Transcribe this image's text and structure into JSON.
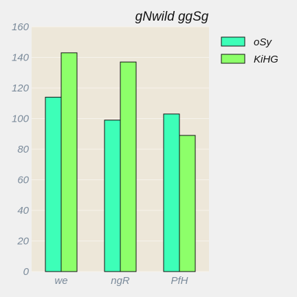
{
  "chart_data": {
    "type": "bar",
    "title": "gNwild ggSg",
    "xlabel": "",
    "ylabel": "",
    "categories": [
      "we",
      "ngR",
      "PfH"
    ],
    "series": [
      {
        "name": "oSy",
        "values": [
          114,
          99,
          103
        ],
        "color": "#3dffb8"
      },
      {
        "name": "KiHG",
        "values": [
          143,
          137,
          89
        ],
        "color": "#8dff6a"
      }
    ],
    "ylim": [
      0,
      160
    ],
    "yticks": [
      0,
      20,
      40,
      60,
      80,
      100,
      120,
      140,
      160
    ],
    "grid": true,
    "legend": "top-right outside",
    "plot_background": "#ede7d9",
    "page_background": "#f0f0f0"
  }
}
